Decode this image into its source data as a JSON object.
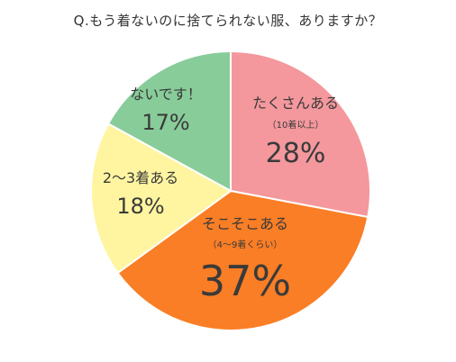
{
  "chart_data": {
    "type": "pie",
    "title": "Q.もう着ないのに捨てられない服、ありますか？",
    "slices": [
      {
        "name": "たくさんある",
        "note": "（10着以上）",
        "value": 28,
        "label": "28%",
        "color": "#f4989d"
      },
      {
        "name": "そこそこある",
        "note": "（4〜9着くらい）",
        "value": 37,
        "label": "37%",
        "color": "#fa7e25"
      },
      {
        "name": "2〜3着ある",
        "note": "",
        "value": 18,
        "label": "18%",
        "color": "#fff5a0"
      },
      {
        "name": "ないです！",
        "note": "",
        "value": 17,
        "label": "17%",
        "color": "#88cc9a"
      }
    ],
    "start_angle": "12 o'clock",
    "direction": "clockwise",
    "legend": "none",
    "slice_border_color": "#ffffff"
  }
}
